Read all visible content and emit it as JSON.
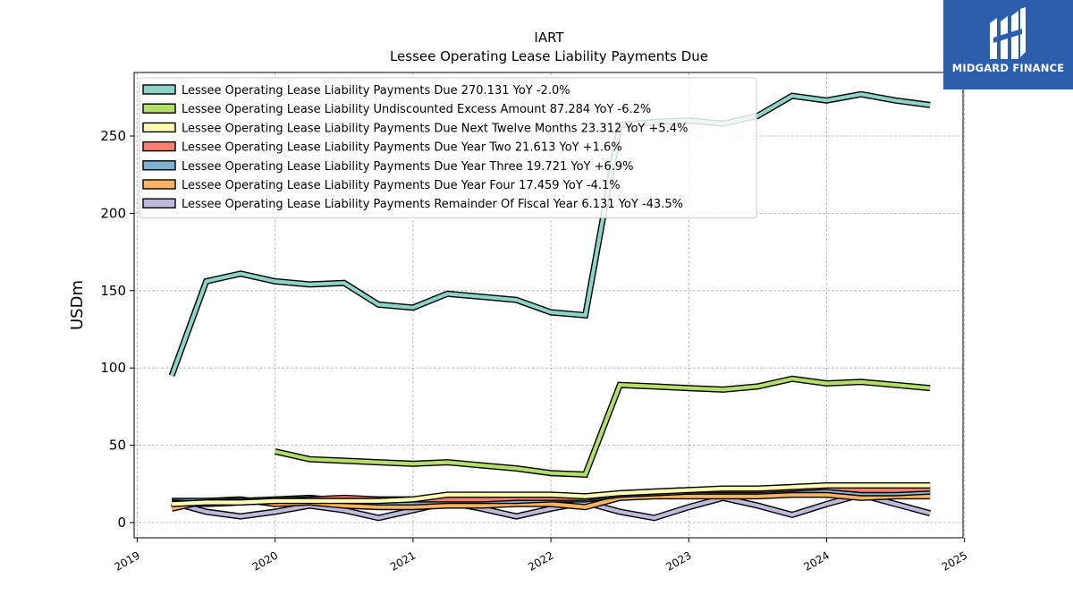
{
  "logo": {
    "text": "MIDGARD FINANCE",
    "icon": "midgard-logo-icon"
  },
  "chart_data": {
    "type": "line",
    "title": "IART",
    "subtitle": "Lessee Operating Lease Liability Payments Due",
    "ylabel": "USDm",
    "xlabel": "",
    "x_ticks": [
      "2019",
      "2020",
      "2021",
      "2022",
      "2023",
      "2024",
      "2025"
    ],
    "y_ticks": [
      0,
      50,
      100,
      150,
      200,
      250
    ],
    "xlim": [
      2019.0,
      2025.0
    ],
    "ylim": [
      -10,
      290
    ],
    "grid": true,
    "legend_position": "top-left",
    "x": [
      2019.25,
      2019.5,
      2019.75,
      2020.0,
      2020.25,
      2020.5,
      2020.75,
      2021.0,
      2021.25,
      2021.5,
      2021.75,
      2022.0,
      2022.25,
      2022.5,
      2022.75,
      2023.0,
      2023.25,
      2023.5,
      2023.75,
      2024.0,
      2024.25,
      2024.5,
      2024.75
    ],
    "series": [
      {
        "name": "Lessee Operating Lease Liability Payments Due",
        "legend": "Lessee Operating Lease Liability Payments Due  270.131 YoY -2.0%",
        "color": "#8dd3c7",
        "values": [
          95,
          156,
          161,
          156,
          154,
          155,
          141,
          139,
          148,
          146,
          144,
          136,
          134,
          257,
          259,
          260,
          258,
          263,
          276,
          273,
          277,
          273,
          270
        ]
      },
      {
        "name": "Lessee Operating Lease Liability Undiscounted Excess Amount",
        "legend": "Lessee Operating Lease Liability Undiscounted Excess Amount  87.284 YoY -6.2%",
        "color": "#b3de69",
        "values": [
          null,
          null,
          null,
          46,
          41,
          40,
          39,
          38,
          39,
          37,
          35,
          32,
          31,
          89,
          88,
          87,
          86,
          88,
          93,
          90,
          91,
          89,
          87
        ]
      },
      {
        "name": "Lessee Operating Lease Liability Payments Due Next Twelve Months",
        "legend": "Lessee Operating Lease Liability Payments Due Next Twelve Months  23.312 YoY +5.4%",
        "color": "#ffffb3",
        "values": [
          12,
          13,
          13,
          14,
          14,
          14,
          14,
          15,
          18,
          18,
          18,
          18,
          17,
          19,
          20,
          21,
          22,
          22,
          23,
          24,
          24,
          24,
          24
        ]
      },
      {
        "name": "Lessee Operating Lease Liability Payments Due Year Two",
        "legend": "Lessee Operating Lease Liability Payments Due Year Two  21.613 YoY +1.6%",
        "color": "#fb8072",
        "values": [
          13,
          12,
          13,
          14,
          15,
          16,
          15,
          15,
          15,
          15,
          16,
          16,
          16,
          19,
          20,
          21,
          21,
          21,
          22,
          23,
          21,
          21,
          22
        ]
      },
      {
        "name": "Lessee Operating Lease Liability Payments Due Year Three",
        "legend": "Lessee Operating Lease Liability Payments Due Year Three  19.721 YoY +6.9%",
        "color": "#80b1d3",
        "values": [
          14,
          14,
          14,
          15,
          16,
          14,
          13,
          13,
          14,
          14,
          14,
          15,
          15,
          18,
          19,
          20,
          20,
          20,
          21,
          21,
          19,
          19,
          20
        ]
      },
      {
        "name": "Lessee Operating Lease Liability Payments Due Year Four",
        "legend": "Lessee Operating Lease Liability Payments Due Year Four  17.459 YoY -4.1%",
        "color": "#fdb462",
        "values": [
          9,
          14,
          15,
          12,
          13,
          11,
          10,
          10,
          11,
          11,
          12,
          12,
          10,
          16,
          17,
          17,
          17,
          17,
          18,
          18,
          16,
          17,
          17
        ]
      },
      {
        "name": "Lessee Operating Lease Liability Payments Remainder Of Fiscal Year",
        "legend": "Lessee Operating Lease Liability Payments Remainder Of Fiscal Year  6.131 YoY -43.5%",
        "color": "#bebada",
        "values": [
          13,
          7,
          4,
          7,
          11,
          8,
          3,
          8,
          13,
          9,
          4,
          9,
          13,
          7,
          3,
          10,
          16,
          11,
          5,
          12,
          18,
          12,
          6
        ]
      }
    ]
  }
}
